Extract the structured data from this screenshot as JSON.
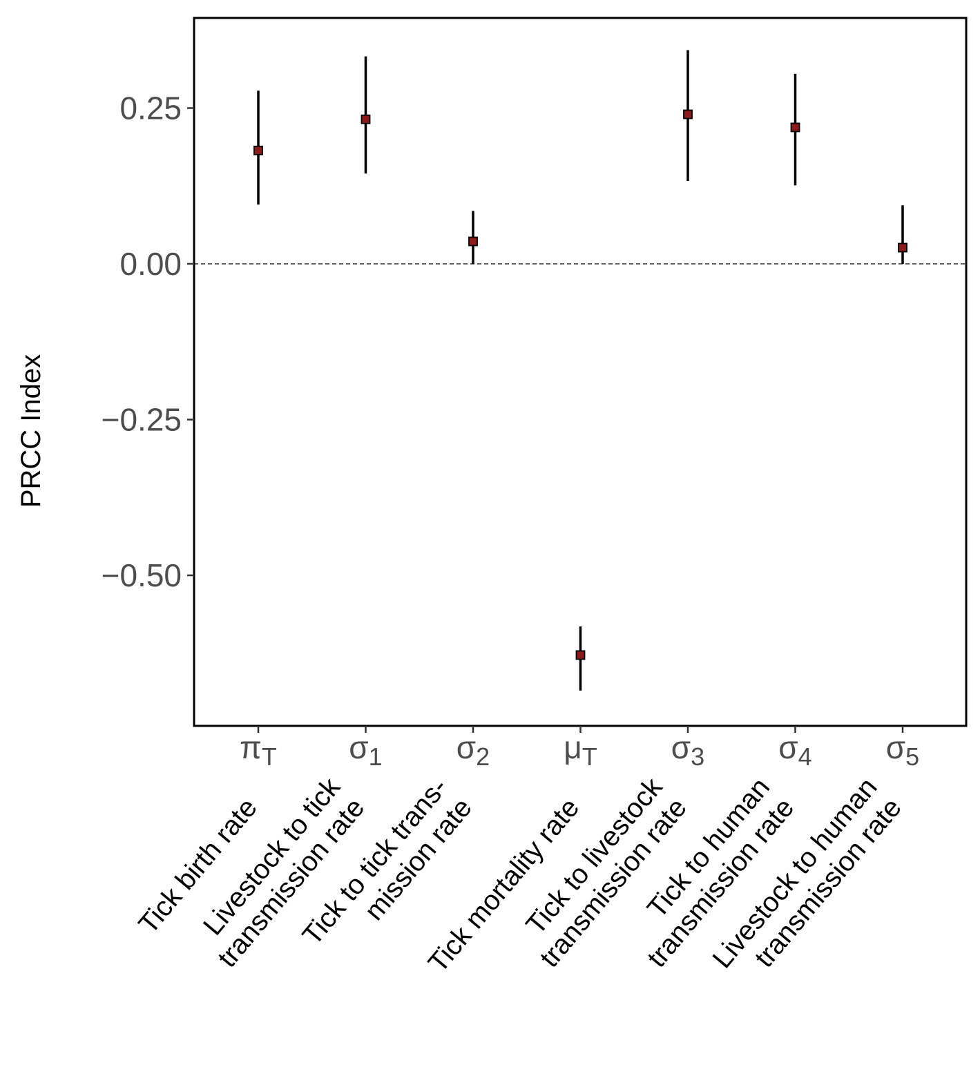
{
  "chart_data": {
    "type": "scatter",
    "ylabel": "PRCC Index",
    "ylim": [
      -0.735,
      0.39
    ],
    "yticks": [
      0.25,
      0.0,
      -0.25,
      -0.5
    ],
    "ytick_labels": [
      "0.25",
      "0.00",
      "−0.25",
      "−0.50"
    ],
    "reference_line": 0.0,
    "point_color": "#8b1a1a",
    "parameters": [
      {
        "symbol": "π",
        "sub": "T",
        "description": [
          "Tick birth rate"
        ],
        "value": 0.182,
        "lower": 0.095,
        "upper": 0.278
      },
      {
        "symbol": "σ",
        "sub": "1",
        "description": [
          "Livestock to tick",
          "transmission rate"
        ],
        "value": 0.232,
        "lower": 0.145,
        "upper": 0.333
      },
      {
        "symbol": "σ",
        "sub": "2",
        "description": [
          "Tick to tick trans-",
          "mission rate"
        ],
        "value": 0.036,
        "lower": 0.0,
        "upper": 0.085
      },
      {
        "symbol": "μ",
        "sub": "T",
        "description": [
          "Tick mortality rate"
        ],
        "value": -0.628,
        "lower": -0.685,
        "upper": -0.582
      },
      {
        "symbol": "σ",
        "sub": "3",
        "description": [
          "Tick to livestock",
          "transmission rate"
        ],
        "value": 0.24,
        "lower": 0.133,
        "upper": 0.343
      },
      {
        "symbol": "σ",
        "sub": "4",
        "description": [
          "Tick to human",
          "transmission rate"
        ],
        "value": 0.219,
        "lower": 0.126,
        "upper": 0.305
      },
      {
        "symbol": "σ",
        "sub": "5",
        "description": [
          "Livestock to human",
          "transmission rate"
        ],
        "value": 0.026,
        "lower": 0.0,
        "upper": 0.094
      }
    ]
  }
}
